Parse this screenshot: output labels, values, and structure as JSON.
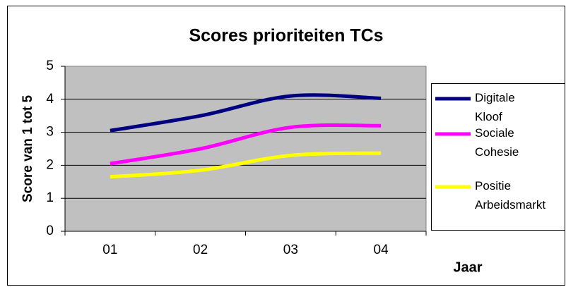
{
  "chart_data": {
    "type": "line",
    "title": "Scores prioriteiten TCs",
    "y_label": "Score van 1 tot 5",
    "x_label": "Jaar",
    "categories": [
      "01",
      "02",
      "03",
      "04"
    ],
    "series": [
      {
        "name": "Digitale Kloof",
        "color": "#000080",
        "values": [
          3.05,
          3.5,
          4.1,
          4.03
        ]
      },
      {
        "name": "Sociale Cohesie",
        "color": "#ff00ff",
        "values": [
          2.05,
          2.5,
          3.15,
          3.2
        ]
      },
      {
        "name": "Positie Arbeidsmarkt",
        "color": "#ffff00",
        "values": [
          1.65,
          1.85,
          2.3,
          2.37
        ]
      }
    ],
    "ylim": [
      0,
      5
    ],
    "yticks": [
      0,
      1,
      2,
      3,
      4,
      5
    ],
    "grid": true,
    "smooth": true,
    "legend": "right"
  }
}
